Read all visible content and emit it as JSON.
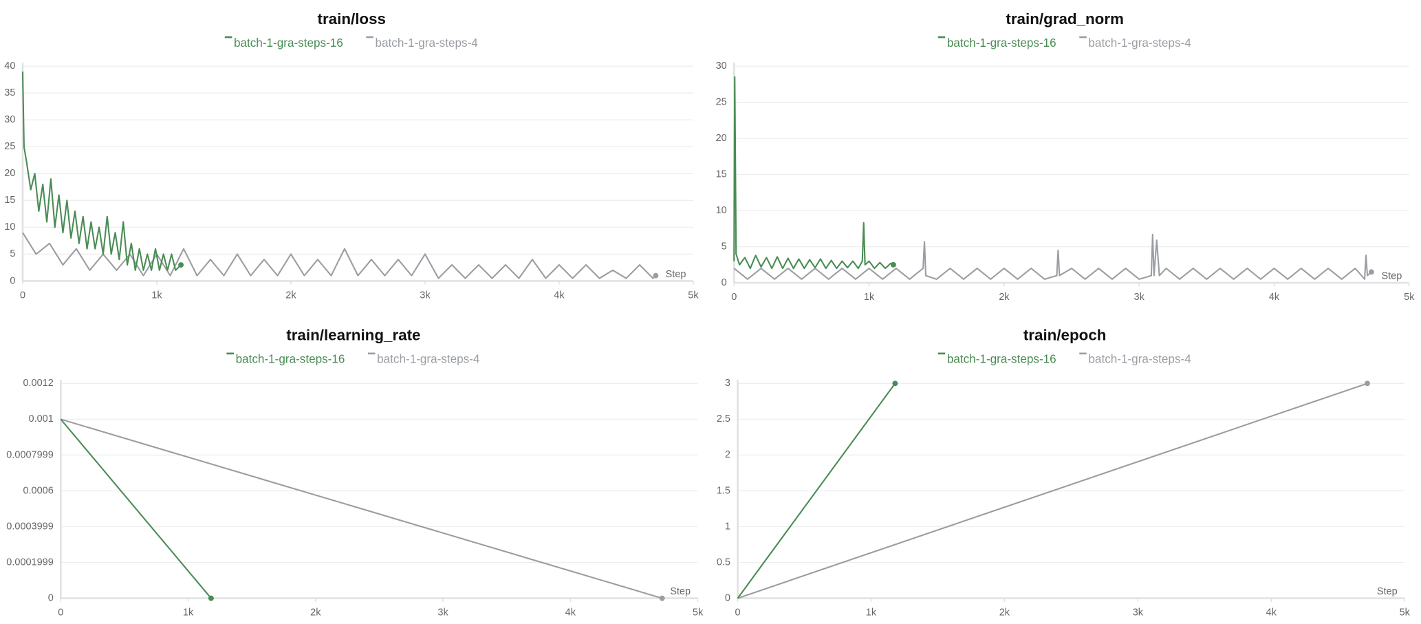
{
  "chart_data": [
    {
      "type": "line",
      "title": "train/loss",
      "x_label": "Step",
      "grid": true,
      "xlim": [
        0,
        5000
      ],
      "ylim": [
        0,
        40
      ],
      "xticks": [
        0,
        {
          "value": 1000,
          "label": "1k"
        },
        {
          "value": 2000,
          "label": "2k"
        },
        {
          "value": 3000,
          "label": "3k"
        },
        {
          "value": 4000,
          "label": "4k"
        },
        {
          "value": 5000,
          "label": "5k"
        }
      ],
      "yticks": [
        0,
        5,
        10,
        15,
        20,
        25,
        30,
        35,
        40
      ],
      "series": [
        {
          "name": "batch-1-gra-steps-16",
          "color": "#4a8c55",
          "x": [
            0,
            10,
            30,
            60,
            90,
            120,
            150,
            180,
            210,
            240,
            270,
            300,
            330,
            360,
            390,
            420,
            450,
            480,
            510,
            540,
            570,
            600,
            630,
            660,
            690,
            720,
            750,
            780,
            810,
            840,
            870,
            900,
            930,
            960,
            990,
            1020,
            1050,
            1080,
            1110,
            1140,
            1180
          ],
          "values": [
            39,
            25,
            22,
            17,
            20,
            13,
            18,
            11,
            19,
            10,
            16,
            9,
            15,
            8,
            13,
            7,
            12,
            6,
            11,
            6,
            10,
            5,
            12,
            5,
            9,
            4,
            11,
            3,
            7,
            2,
            6,
            2,
            5,
            2,
            6,
            2,
            5,
            2,
            5,
            2,
            3
          ]
        },
        {
          "name": "batch-1-gra-steps-4",
          "color": "#9a9ea3",
          "x": [
            0,
            100,
            200,
            300,
            400,
            500,
            600,
            700,
            800,
            900,
            1000,
            1100,
            1200,
            1300,
            1400,
            1500,
            1600,
            1700,
            1800,
            1900,
            2000,
            2100,
            2200,
            2300,
            2400,
            2500,
            2600,
            2700,
            2800,
            2900,
            3000,
            3100,
            3200,
            3300,
            3400,
            3500,
            3600,
            3700,
            3800,
            3900,
            4000,
            4100,
            4200,
            4300,
            4400,
            4500,
            4600,
            4700,
            4720
          ],
          "values": [
            9,
            5,
            7,
            3,
            6,
            2,
            5,
            2,
            5,
            1,
            5,
            1,
            6,
            1,
            4,
            1,
            5,
            1,
            4,
            1,
            5,
            1,
            4,
            1,
            6,
            1,
            4,
            1,
            4,
            1,
            5,
            0.5,
            3,
            0.5,
            3,
            0.5,
            3,
            0.5,
            4,
            0.5,
            3,
            0.5,
            3,
            0.5,
            2,
            0.5,
            3,
            0.5,
            1
          ]
        }
      ]
    },
    {
      "type": "line",
      "title": "train/grad_norm",
      "x_label": "Step",
      "grid": true,
      "xlim": [
        0,
        5000
      ],
      "ylim": [
        0,
        30
      ],
      "xticks": [
        0,
        {
          "value": 1000,
          "label": "1k"
        },
        {
          "value": 2000,
          "label": "2k"
        },
        {
          "value": 3000,
          "label": "3k"
        },
        {
          "value": 4000,
          "label": "4k"
        },
        {
          "value": 5000,
          "label": "5k"
        }
      ],
      "yticks": [
        0,
        5,
        10,
        15,
        20,
        25,
        30
      ],
      "series": [
        {
          "name": "batch-1-gra-steps-16",
          "color": "#4a8c55",
          "x": [
            0,
            5,
            15,
            40,
            80,
            120,
            160,
            200,
            240,
            280,
            320,
            360,
            400,
            440,
            480,
            520,
            560,
            600,
            640,
            680,
            720,
            760,
            800,
            840,
            880,
            920,
            950,
            960,
            970,
            1000,
            1040,
            1080,
            1120,
            1160,
            1180
          ],
          "values": [
            3,
            28.5,
            4,
            2.5,
            3.5,
            2,
            3.8,
            2.2,
            3.5,
            2,
            3.6,
            2,
            3.4,
            2,
            3.3,
            2,
            3.2,
            2.1,
            3.3,
            2,
            3.1,
            2,
            3,
            2.1,
            3,
            2,
            3,
            8.3,
            2.5,
            3,
            2,
            2.8,
            2,
            2.7,
            2.5
          ]
        },
        {
          "name": "batch-1-gra-steps-4",
          "color": "#9a9ea3",
          "x": [
            0,
            100,
            200,
            300,
            400,
            500,
            600,
            700,
            800,
            900,
            1000,
            1100,
            1200,
            1300,
            1400,
            1410,
            1420,
            1500,
            1600,
            1700,
            1800,
            1900,
            2000,
            2100,
            2200,
            2300,
            2390,
            2400,
            2410,
            2500,
            2600,
            2700,
            2800,
            2900,
            3000,
            3090,
            3100,
            3110,
            3130,
            3150,
            3200,
            3300,
            3400,
            3500,
            3600,
            3700,
            3800,
            3900,
            4000,
            4100,
            4200,
            4300,
            4400,
            4500,
            4600,
            4670,
            4680,
            4690,
            4720
          ],
          "values": [
            2,
            0.5,
            2,
            0.5,
            2,
            0.5,
            2,
            0.5,
            2,
            0.5,
            2,
            0.5,
            2,
            0.5,
            2,
            5.7,
            1,
            0.5,
            2,
            0.5,
            2,
            0.5,
            2,
            0.5,
            2,
            0.5,
            1,
            4.5,
            1,
            2,
            0.5,
            2,
            0.5,
            2,
            0.5,
            1,
            6.7,
            1,
            5.9,
            1,
            2,
            0.5,
            2,
            0.5,
            2,
            0.5,
            2,
            0.5,
            2,
            0.5,
            2,
            0.5,
            2,
            0.5,
            2,
            0.5,
            3.8,
            1,
            1.5
          ]
        }
      ]
    },
    {
      "type": "line",
      "title": "train/learning_rate",
      "x_label": "Step",
      "grid": true,
      "xlim": [
        0,
        5000
      ],
      "ylim": [
        0,
        0.0012
      ],
      "xticks": [
        0,
        {
          "value": 1000,
          "label": "1k"
        },
        {
          "value": 2000,
          "label": "2k"
        },
        {
          "value": 3000,
          "label": "3k"
        },
        {
          "value": 4000,
          "label": "4k"
        },
        {
          "value": 5000,
          "label": "5k"
        }
      ],
      "yticks": [
        0,
        0.0001999,
        0.0003999,
        0.0006,
        0.0007999,
        0.001,
        0.0012
      ],
      "series": [
        {
          "name": "batch-1-gra-steps-16",
          "color": "#4a8c55",
          "x": [
            0,
            1180
          ],
          "values": [
            0.001,
            0
          ]
        },
        {
          "name": "batch-1-gra-steps-4",
          "color": "#9a9ea3",
          "x": [
            0,
            4720
          ],
          "values": [
            0.001,
            0
          ]
        }
      ]
    },
    {
      "type": "line",
      "title": "train/epoch",
      "x_label": "Step",
      "grid": true,
      "xlim": [
        0,
        5000
      ],
      "ylim": [
        0,
        3
      ],
      "xticks": [
        0,
        {
          "value": 1000,
          "label": "1k"
        },
        {
          "value": 2000,
          "label": "2k"
        },
        {
          "value": 3000,
          "label": "3k"
        },
        {
          "value": 4000,
          "label": "4k"
        },
        {
          "value": 5000,
          "label": "5k"
        }
      ],
      "yticks": [
        0,
        0.5,
        1,
        1.5,
        2,
        2.5,
        3
      ],
      "series": [
        {
          "name": "batch-1-gra-steps-16",
          "color": "#4a8c55",
          "x": [
            0,
            1180
          ],
          "values": [
            0,
            3
          ]
        },
        {
          "name": "batch-1-gra-steps-4",
          "color": "#9a9ea3",
          "x": [
            0,
            4720
          ],
          "values": [
            0,
            3
          ]
        }
      ]
    }
  ]
}
